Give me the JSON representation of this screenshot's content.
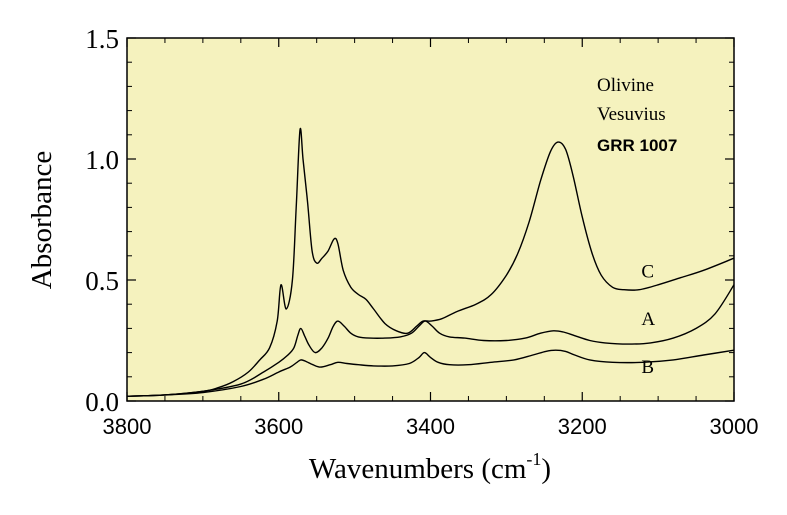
{
  "chart_data": {
    "type": "line",
    "xlabel": "Wavenumbers (cm",
    "xlabel_sup": "-1",
    "xlabel_close": ")",
    "ylabel": "Absorbance",
    "xlim": [
      3800,
      3000
    ],
    "ylim": [
      0,
      1.5
    ],
    "x_ticks": [
      "3800",
      "3600",
      "3400",
      "3200",
      "3000"
    ],
    "y_ticks": [
      "0.0",
      "0.5",
      "1.0",
      "1.5"
    ],
    "annotations": [
      "Olivine",
      "Vesuvius",
      "GRR 1007"
    ],
    "grid": false,
    "background_color": "#f5f2be",
    "line_color": "#000000",
    "series": [
      {
        "name": "C",
        "points": [
          [
            3800,
            0.02
          ],
          [
            3750,
            0.025
          ],
          [
            3700,
            0.04
          ],
          [
            3680,
            0.055
          ],
          [
            3660,
            0.08
          ],
          [
            3640,
            0.12
          ],
          [
            3625,
            0.17
          ],
          [
            3612,
            0.22
          ],
          [
            3602,
            0.33
          ],
          [
            3597,
            0.48
          ],
          [
            3590,
            0.38
          ],
          [
            3582,
            0.5
          ],
          [
            3577,
            0.8
          ],
          [
            3572,
            1.12
          ],
          [
            3568,
            1.0
          ],
          [
            3562,
            0.82
          ],
          [
            3556,
            0.62
          ],
          [
            3550,
            0.57
          ],
          [
            3543,
            0.59
          ],
          [
            3535,
            0.62
          ],
          [
            3527,
            0.67
          ],
          [
            3522,
            0.65
          ],
          [
            3515,
            0.54
          ],
          [
            3505,
            0.47
          ],
          [
            3495,
            0.44
          ],
          [
            3485,
            0.42
          ],
          [
            3475,
            0.38
          ],
          [
            3460,
            0.32
          ],
          [
            3445,
            0.29
          ],
          [
            3430,
            0.28
          ],
          [
            3418,
            0.31
          ],
          [
            3410,
            0.33
          ],
          [
            3400,
            0.33
          ],
          [
            3385,
            0.34
          ],
          [
            3365,
            0.37
          ],
          [
            3340,
            0.4
          ],
          [
            3320,
            0.44
          ],
          [
            3300,
            0.52
          ],
          [
            3285,
            0.61
          ],
          [
            3270,
            0.74
          ],
          [
            3255,
            0.91
          ],
          [
            3242,
            1.03
          ],
          [
            3232,
            1.07
          ],
          [
            3222,
            1.04
          ],
          [
            3212,
            0.93
          ],
          [
            3200,
            0.76
          ],
          [
            3187,
            0.61
          ],
          [
            3175,
            0.52
          ],
          [
            3160,
            0.47
          ],
          [
            3145,
            0.46
          ],
          [
            3125,
            0.46
          ],
          [
            3100,
            0.48
          ],
          [
            3070,
            0.51
          ],
          [
            3040,
            0.54
          ],
          [
            3000,
            0.59
          ]
        ]
      },
      {
        "name": "A",
        "points": [
          [
            3800,
            0.02
          ],
          [
            3750,
            0.025
          ],
          [
            3700,
            0.04
          ],
          [
            3650,
            0.07
          ],
          [
            3620,
            0.12
          ],
          [
            3600,
            0.16
          ],
          [
            3588,
            0.19
          ],
          [
            3580,
            0.22
          ],
          [
            3575,
            0.27
          ],
          [
            3571,
            0.3
          ],
          [
            3566,
            0.27
          ],
          [
            3560,
            0.23
          ],
          [
            3552,
            0.2
          ],
          [
            3543,
            0.22
          ],
          [
            3535,
            0.26
          ],
          [
            3528,
            0.31
          ],
          [
            3522,
            0.33
          ],
          [
            3514,
            0.31
          ],
          [
            3505,
            0.28
          ],
          [
            3495,
            0.265
          ],
          [
            3480,
            0.26
          ],
          [
            3460,
            0.26
          ],
          [
            3440,
            0.265
          ],
          [
            3425,
            0.28
          ],
          [
            3415,
            0.31
          ],
          [
            3407,
            0.33
          ],
          [
            3398,
            0.31
          ],
          [
            3388,
            0.28
          ],
          [
            3375,
            0.265
          ],
          [
            3355,
            0.26
          ],
          [
            3330,
            0.25
          ],
          [
            3300,
            0.25
          ],
          [
            3275,
            0.26
          ],
          [
            3255,
            0.28
          ],
          [
            3238,
            0.29
          ],
          [
            3225,
            0.285
          ],
          [
            3210,
            0.27
          ],
          [
            3190,
            0.25
          ],
          [
            3170,
            0.24
          ],
          [
            3140,
            0.235
          ],
          [
            3110,
            0.24
          ],
          [
            3080,
            0.26
          ],
          [
            3050,
            0.3
          ],
          [
            3025,
            0.36
          ],
          [
            3000,
            0.48
          ]
        ]
      },
      {
        "name": "B",
        "points": [
          [
            3800,
            0.02
          ],
          [
            3750,
            0.025
          ],
          [
            3700,
            0.035
          ],
          [
            3650,
            0.06
          ],
          [
            3620,
            0.09
          ],
          [
            3600,
            0.12
          ],
          [
            3585,
            0.14
          ],
          [
            3576,
            0.16
          ],
          [
            3571,
            0.17
          ],
          [
            3565,
            0.165
          ],
          [
            3555,
            0.15
          ],
          [
            3545,
            0.14
          ],
          [
            3532,
            0.15
          ],
          [
            3522,
            0.16
          ],
          [
            3510,
            0.155
          ],
          [
            3495,
            0.15
          ],
          [
            3475,
            0.145
          ],
          [
            3450,
            0.145
          ],
          [
            3428,
            0.155
          ],
          [
            3415,
            0.18
          ],
          [
            3408,
            0.2
          ],
          [
            3400,
            0.18
          ],
          [
            3390,
            0.16
          ],
          [
            3375,
            0.15
          ],
          [
            3350,
            0.15
          ],
          [
            3320,
            0.16
          ],
          [
            3290,
            0.17
          ],
          [
            3265,
            0.19
          ],
          [
            3248,
            0.205
          ],
          [
            3235,
            0.21
          ],
          [
            3222,
            0.205
          ],
          [
            3210,
            0.19
          ],
          [
            3190,
            0.17
          ],
          [
            3160,
            0.16
          ],
          [
            3120,
            0.16
          ],
          [
            3080,
            0.17
          ],
          [
            3040,
            0.19
          ],
          [
            3000,
            0.21
          ]
        ]
      }
    ]
  }
}
